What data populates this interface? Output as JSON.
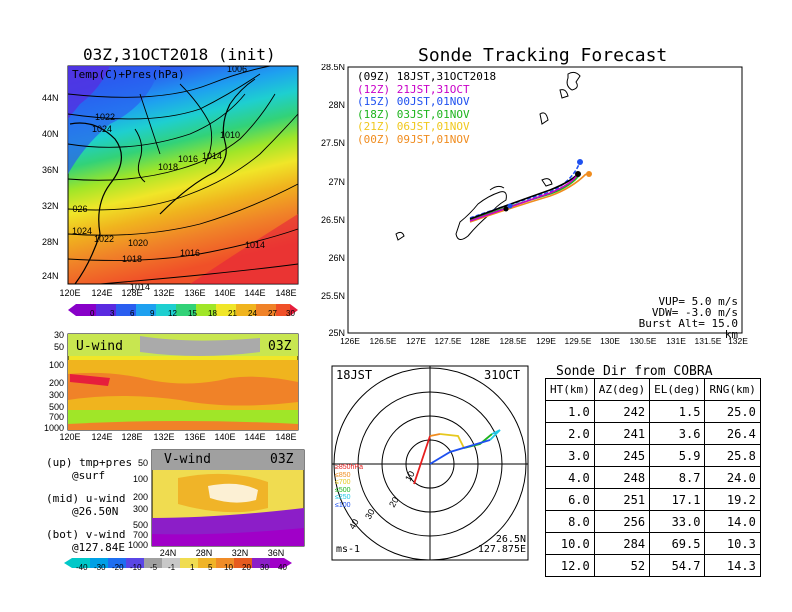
{
  "map_panel": {
    "title": "03Z,31OCT2018 (init)",
    "field_label": "Temp(C)+Pres(hPa)",
    "lon_ticks": [
      "120E",
      "124E",
      "128E",
      "132E",
      "136E",
      "140E",
      "144E",
      "148E"
    ],
    "lat_ticks": [
      "44N",
      "40N",
      "36N",
      "32N",
      "28N",
      "24N"
    ],
    "isobar_labels": [
      "1006",
      "1022",
      "1024",
      "1024",
      "1010",
      "1016",
      "1014",
      "1012",
      "1018",
      "1026",
      "1024",
      "1022",
      "1020",
      "1016",
      "1014",
      "1018",
      "1014"
    ],
    "colorbar_ticks": [
      "0",
      "3",
      "6",
      "9",
      "12",
      "15",
      "18",
      "21",
      "24",
      "27",
      "30"
    ],
    "colors": [
      "#8800c8",
      "#5a2ae0",
      "#2a5ef0",
      "#1ea0f0",
      "#1ecfd0",
      "#32d278",
      "#a0e628",
      "#f0e628",
      "#f0b41e",
      "#f08228",
      "#f05028",
      "#e61e3c"
    ]
  },
  "uwind_panel": {
    "label": "U-wind",
    "time": "03Z",
    "pres_ticks": [
      "30",
      "50",
      "100",
      "200",
      "300",
      "500",
      "700",
      "1000"
    ],
    "lon_ticks": [
      "120E",
      "124E",
      "128E",
      "132E",
      "136E",
      "140E",
      "144E",
      "148E"
    ]
  },
  "vwind_panel": {
    "label": "V-wind",
    "time": "03Z",
    "pres_ticks": [
      "50",
      "100",
      "200",
      "300",
      "500",
      "700",
      "1000"
    ],
    "lat_ticks": [
      "24N",
      "28N",
      "32N",
      "36N"
    ],
    "colorbar_ticks": [
      "-40",
      "-30",
      "-20",
      "-10",
      "-5",
      "-1",
      "1",
      "5",
      "10",
      "20",
      "30",
      "40"
    ],
    "colors": [
      "#00c8c8",
      "#00a0e6",
      "#1e6ef0",
      "#5a46e6",
      "#a0a0a0",
      "#b4b4b4",
      "#c8c8c8",
      "#f0dc50",
      "#f0b428",
      "#f08c28",
      "#e65a1e",
      "#8c1ec8",
      "#a000c8"
    ]
  },
  "notes": [
    {
      "line1": "(up) tmp+pres",
      "line2": "@surf"
    },
    {
      "line1": "(mid) u-wind",
      "line2": "@26.50N"
    },
    {
      "line1": "(bot) v-wind",
      "line2": "@127.84E"
    }
  ],
  "tracking": {
    "title": "Sonde Tracking Forecast",
    "lat_ticks": [
      "28.5N",
      "28N",
      "27.5N",
      "27N",
      "26.5N",
      "26N",
      "25.5N",
      "25N"
    ],
    "lon_ticks": [
      "126E",
      "126.5E",
      "127E",
      "127.5E",
      "128E",
      "128.5E",
      "129E",
      "129.5E",
      "130E",
      "130.5E",
      "131E",
      "131.5E",
      "132E"
    ],
    "legend": [
      {
        "code": "(09Z)",
        "label": "18JST,31OCT2018",
        "color": "#000000"
      },
      {
        "code": "(12Z)",
        "label": "21JST,31OCT",
        "color": "#c800c8"
      },
      {
        "code": "(15Z)",
        "label": "00JST,01NOV",
        "color": "#1e50f0"
      },
      {
        "code": "(18Z)",
        "label": "03JST,01NOV",
        "color": "#1eb41e"
      },
      {
        "code": "(21Z)",
        "label": "06JST,01NOV",
        "color": "#f0c81e"
      },
      {
        "code": "(00Z)",
        "label": "09JST,01NOV",
        "color": "#f08c1e"
      }
    ],
    "params": {
      "vup": "VUP= 5.0 m/s",
      "vdw": "VDW= -3.0 m/s",
      "burst": "Burst Alt= 15.0 km"
    }
  },
  "hodograph": {
    "time_label": "18JST",
    "date_label": "31OCT",
    "ring_labels": [
      "10",
      "20",
      "30",
      "40"
    ],
    "units": "ms-1",
    "loc_lat": "26.5N",
    "loc_lon": "127.875E",
    "layer_legend": [
      {
        "label": "≥850hPa",
        "color": "#e61e1e"
      },
      {
        "label": "≤850",
        "color": "#f08c1e"
      },
      {
        "label": "≤700",
        "color": "#e6c81e"
      },
      {
        "label": "≤500",
        "color": "#1eb41e"
      },
      {
        "label": "≤250",
        "color": "#1ec8e6"
      },
      {
        "label": "≤100",
        "color": "#1e50f0"
      }
    ]
  },
  "sonde_dir": {
    "title": "Sonde Dir from COBRA",
    "headers": [
      "HT(km)",
      "AZ(deg)",
      "EL(deg)",
      "RNG(km)"
    ],
    "rows": [
      [
        "1.0",
        "242",
        "1.5",
        "25.0"
      ],
      [
        "2.0",
        "241",
        "3.6",
        "26.4"
      ],
      [
        "3.0",
        "245",
        "5.9",
        "25.8"
      ],
      [
        "4.0",
        "248",
        "8.7",
        "24.0"
      ],
      [
        "6.0",
        "251",
        "17.1",
        "19.2"
      ],
      [
        "8.0",
        "256",
        "33.0",
        "14.0"
      ],
      [
        "10.0",
        "284",
        "69.5",
        "10.3"
      ],
      [
        "12.0",
        "52",
        "54.7",
        "14.3"
      ]
    ]
  }
}
